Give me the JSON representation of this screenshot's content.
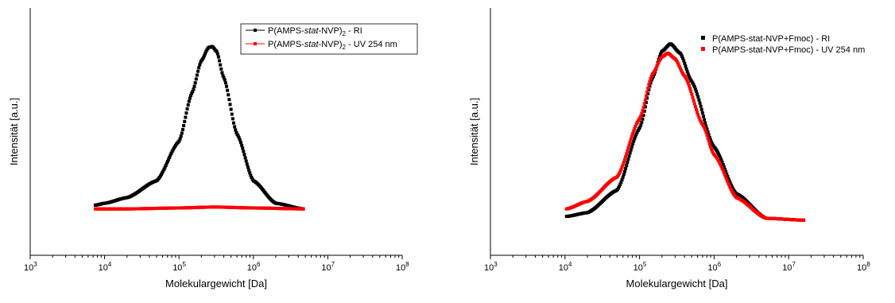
{
  "colors": {
    "ri": "#000000",
    "uv": "#ff0000"
  },
  "chart_data": [
    {
      "type": "scatter",
      "xlabel": "Molekulargewicht [Da]",
      "ylabel": "Intensität [a.u.]",
      "xscale": "log",
      "xlim": [
        1000,
        100000000
      ],
      "ylim": [
        0,
        1
      ],
      "x_tick_exponents": [
        "3",
        "4",
        "5",
        "6",
        "7",
        "8"
      ],
      "x_tick_base": "10",
      "y_ticks": "none",
      "legend_position": "top-right",
      "legend_style": "line-with-marker",
      "series": [
        {
          "name": "P(AMPS-stat-NVP)2 - RI",
          "legend_parts": [
            "P(AMPS-",
            "stat",
            "-NVP)",
            "2",
            " - RI"
          ],
          "color": "#000000",
          "x": [
            7500,
            10000,
            20000,
            50000,
            100000,
            150000,
            200000,
            250000,
            280000,
            320000,
            400000,
            600000,
            1000000,
            2000000,
            4700000
          ],
          "y": [
            0.14,
            0.15,
            0.18,
            0.27,
            0.48,
            0.74,
            0.91,
            0.98,
            0.985,
            0.96,
            0.82,
            0.52,
            0.27,
            0.15,
            0.12
          ]
        },
        {
          "name": "P(AMPS-stat-NVP)2 - UV 254 nm",
          "legend_parts": [
            "P(AMPS-",
            "stat",
            "-NVP)",
            "2",
            " - UV 254 nm"
          ],
          "color": "#ff0000",
          "x": [
            7500,
            20000,
            100000,
            300000,
            1000000,
            4700000
          ],
          "y": [
            0.12,
            0.12,
            0.125,
            0.13,
            0.125,
            0.12
          ]
        }
      ]
    },
    {
      "type": "scatter",
      "xlabel": "Molekulargewicht [Da]",
      "ylabel": "Intensität [a.u.]",
      "xscale": "log",
      "xlim": [
        1000,
        100000000
      ],
      "ylim": [
        0,
        1
      ],
      "x_tick_exponents": [
        "3",
        "4",
        "5",
        "6",
        "7",
        "8"
      ],
      "x_tick_base": "10",
      "y_ticks": "none",
      "legend_position": "top-right",
      "legend_style": "marker",
      "series": [
        {
          "name": "P(AMPS-stat-NVP+Fmoc) - RI",
          "color": "#000000",
          "x": [
            10500,
            20000,
            50000,
            100000,
            150000,
            200000,
            260000,
            350000,
            500000,
            1000000,
            2000000,
            5000000,
            16000000
          ],
          "y": [
            0.08,
            0.1,
            0.22,
            0.55,
            0.82,
            0.96,
            1.0,
            0.95,
            0.8,
            0.45,
            0.2,
            0.07,
            0.06
          ]
        },
        {
          "name": "P(AMPS-stat-NVP+Fmoc) - UV 254 nm",
          "color": "#ff0000",
          "x": [
            10500,
            20000,
            50000,
            100000,
            150000,
            200000,
            240000,
            300000,
            400000,
            700000,
            1000000,
            2000000,
            5000000,
            16000000
          ],
          "y": [
            0.12,
            0.16,
            0.29,
            0.6,
            0.84,
            0.93,
            0.95,
            0.92,
            0.83,
            0.57,
            0.41,
            0.18,
            0.07,
            0.06
          ]
        }
      ]
    }
  ]
}
